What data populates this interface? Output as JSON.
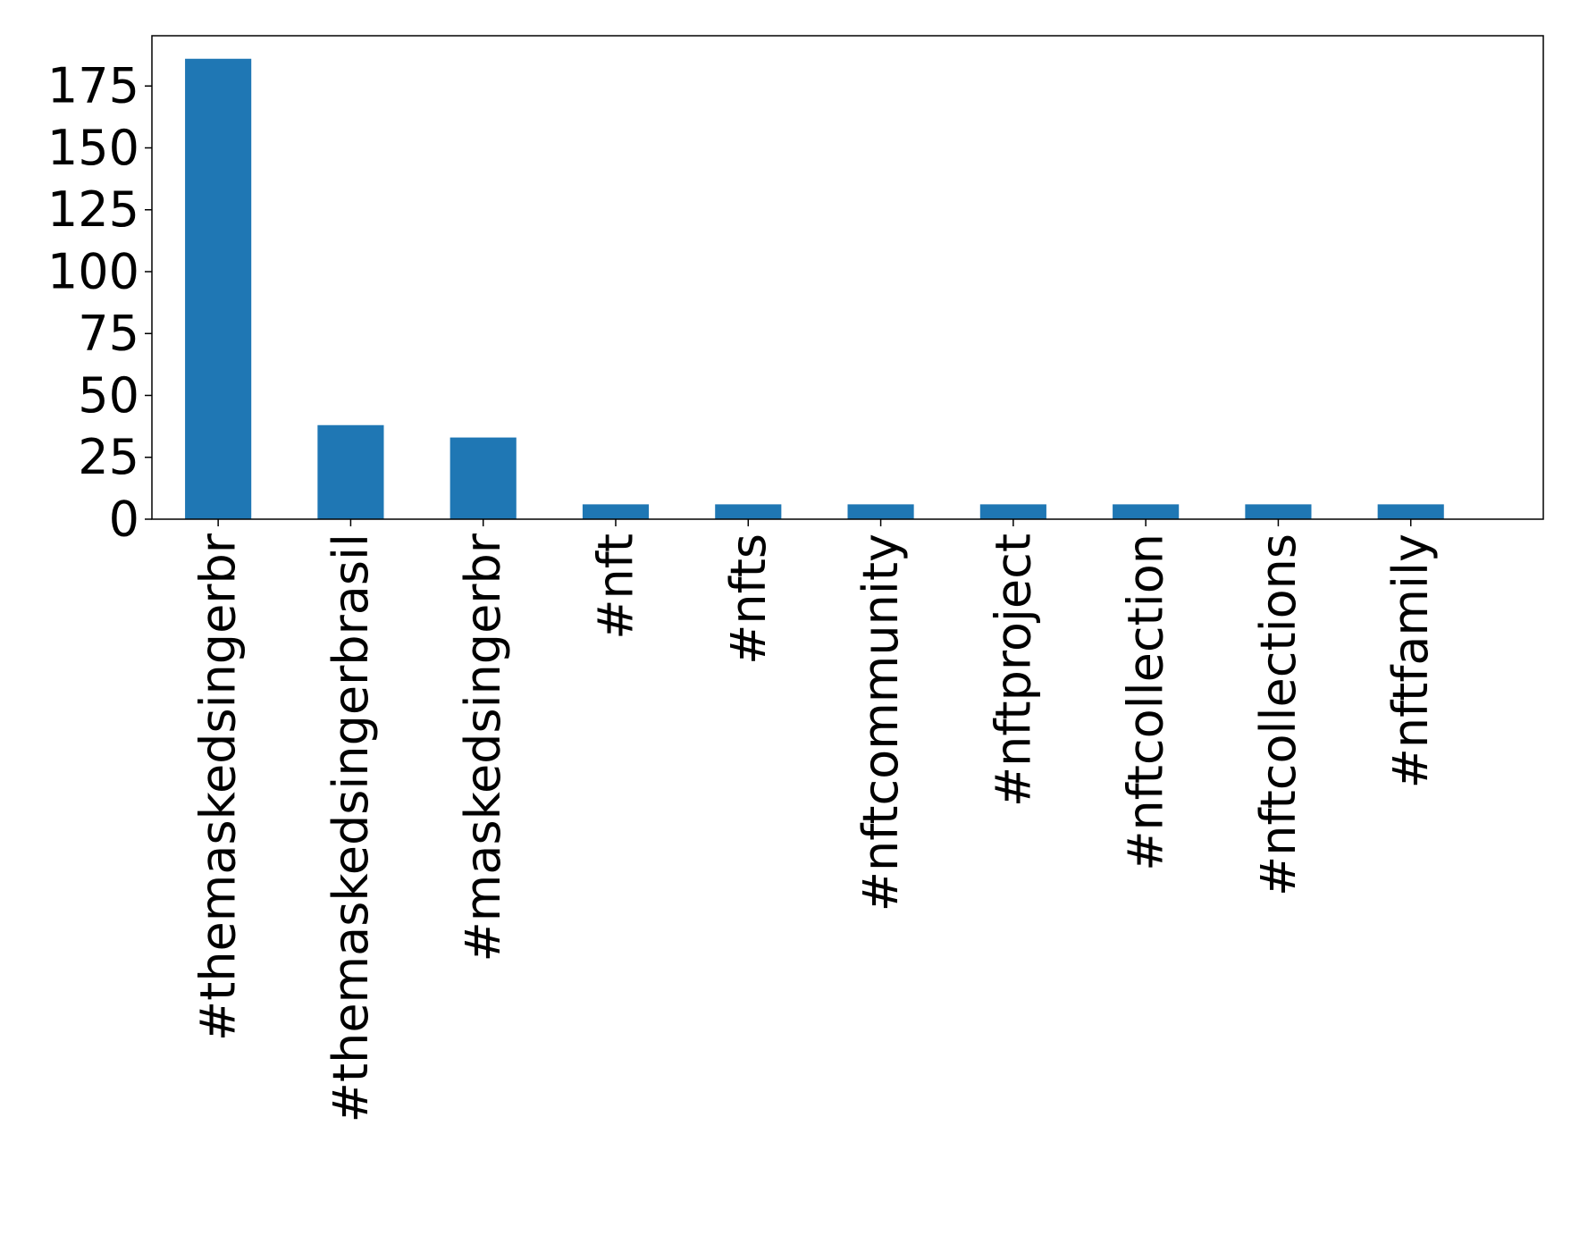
{
  "chart_data": {
    "type": "bar",
    "title": "",
    "xlabel": "",
    "ylabel": "",
    "categories": [
      "#themaskedsingerbr",
      "#themaskedsingerbrasil",
      "#maskedsingerbr",
      "#nft",
      "#nfts",
      "#nftcommunity",
      "#nftproject",
      "#nftcollection",
      "#nftcollections",
      "#nftfamily"
    ],
    "values": [
      186,
      38,
      33,
      6,
      6,
      6,
      6,
      6,
      6,
      6
    ],
    "ylim": [
      0,
      195.3
    ],
    "yticks": [
      0,
      25,
      50,
      75,
      100,
      125,
      150,
      175
    ],
    "grid": false,
    "legend": "none",
    "colors": {
      "bar": "#1f77b4",
      "axis": "#000000",
      "text": "#000000",
      "background": "#ffffff"
    }
  }
}
